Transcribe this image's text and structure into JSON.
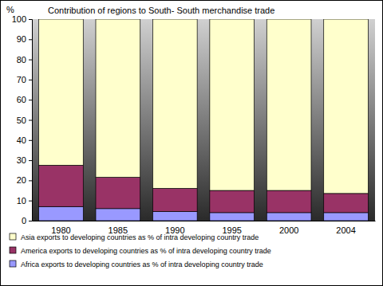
{
  "chart_data": {
    "type": "bar",
    "stacked": true,
    "grid": false,
    "legend": "bottom",
    "title": "Contribution of regions to South- South merchandise trade",
    "y_label": "%",
    "categories": [
      "1980",
      "1985",
      "1990",
      "1995",
      "2000",
      "2004"
    ],
    "series": [
      {
        "name": "Asia exports to developing countries as % of intra developing country trade",
        "color": "#ffffcc",
        "values": [
          72.5,
          78.5,
          84,
          85,
          85,
          86.5
        ]
      },
      {
        "name": "America exports to developing countries as % of intra developing country trade",
        "color": "#993366",
        "values": [
          20.5,
          15.5,
          11.5,
          11,
          11,
          9.5
        ]
      },
      {
        "name": "Africa exports to developing countries as % of intra developing country trade",
        "color": "#9999ff",
        "values": [
          7,
          6,
          4.5,
          4,
          4,
          4
        ]
      }
    ],
    "ylim": [
      0,
      100
    ],
    "yticks": [
      0,
      10,
      20,
      30,
      40,
      50,
      60,
      70,
      80,
      90,
      100
    ]
  }
}
